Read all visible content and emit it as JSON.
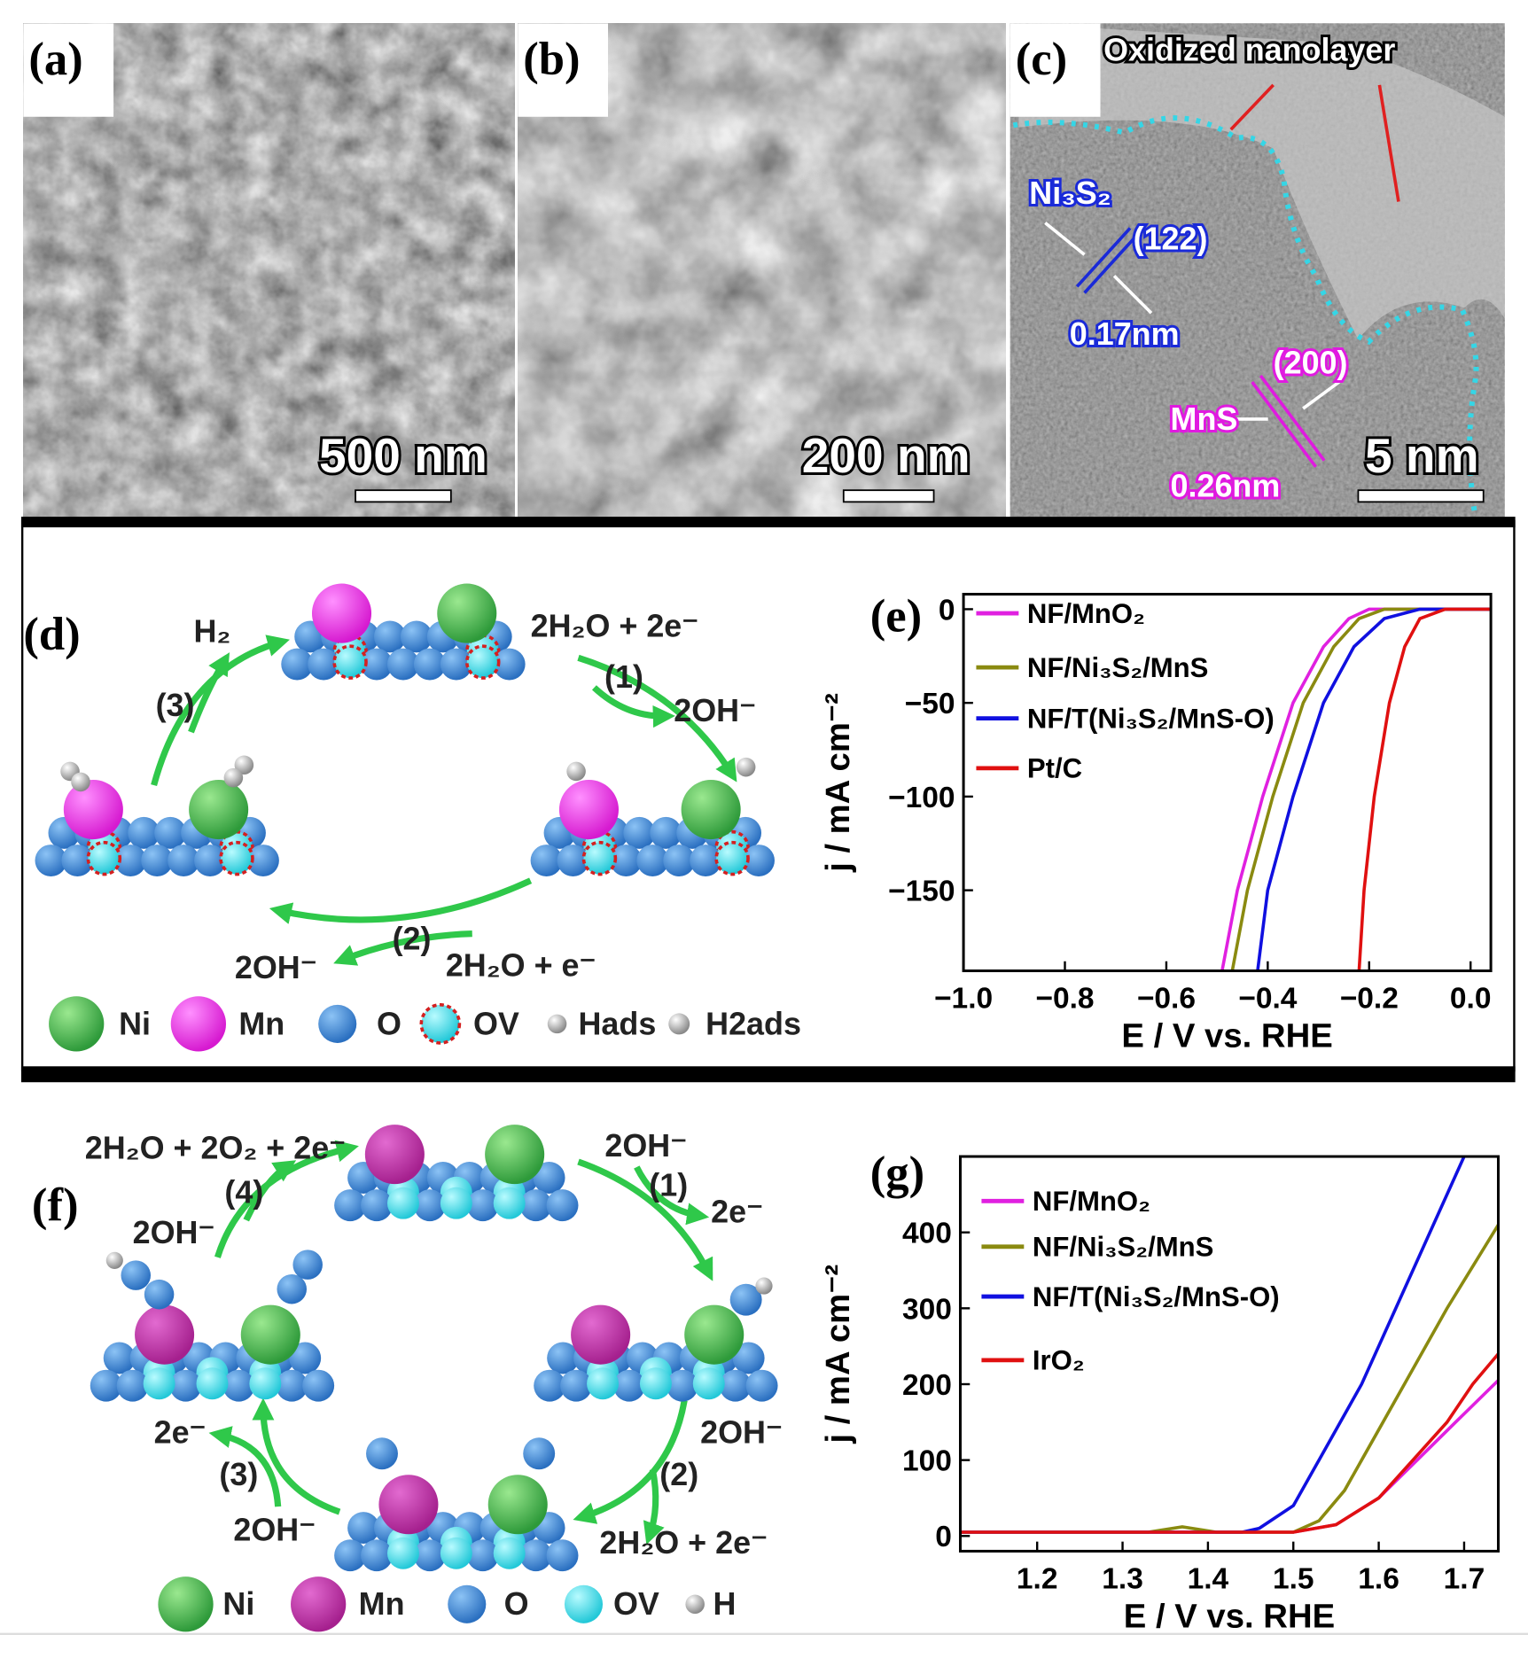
{
  "panel_a": {
    "label": "(a)",
    "scale_bar": "500 nm"
  },
  "panel_b": {
    "label": "(b)",
    "scale_bar": "200 nm"
  },
  "panel_c": {
    "label": "(c)",
    "scale_bar": "5 nm",
    "annotations": [
      "Oxidized nanolayer",
      "Ni₃S₂",
      "(122)",
      "0.17nm",
      "MnS",
      "(200)",
      "0.26nm"
    ]
  },
  "panel_d": {
    "label": "(d)",
    "labels": [
      "H₂",
      "2H₂O + 2e⁻",
      "(1)",
      "2OH⁻",
      "(3)",
      "(2)",
      "2OH⁻",
      "2H₂O + e⁻"
    ],
    "legend": [
      "Ni",
      "Mn",
      "O",
      "OV",
      "Hads",
      "H2ads"
    ]
  },
  "panel_f": {
    "label": "(f)",
    "labels": [
      "2H₂O + 2O₂ + 2e⁻",
      "(4)",
      "2OH⁻",
      "2OH⁻",
      "(1)",
      "2e⁻",
      "2OH⁻",
      "(2)",
      "2H₂O + 2e⁻",
      "2e⁻",
      "(3)",
      "2OH⁻"
    ],
    "legend": [
      "Ni",
      "Mn",
      "O",
      "OV",
      "H"
    ]
  },
  "chart_data": [
    {
      "type": "line",
      "label": "(e)",
      "x_label": "E / V vs. RHE",
      "y_label": "j / mA cm⁻²",
      "legend": "top-left",
      "xlim": [
        -1.0,
        0.04
      ],
      "ylim": [
        -193,
        8
      ],
      "xticks": [
        {
          "value": -1.0,
          "label": "−1.0"
        },
        {
          "value": -0.8,
          "label": "−0.8"
        },
        {
          "value": -0.6,
          "label": "−0.6"
        },
        {
          "value": -0.4,
          "label": "−0.4"
        },
        {
          "value": -0.2,
          "label": "−0.2"
        },
        {
          "value": 0,
          "label": "0.0"
        }
      ],
      "yticks": [
        0,
        {
          "value": -50,
          "label": "−50"
        },
        {
          "value": -100,
          "label": "−100"
        },
        {
          "value": -150,
          "label": "−150"
        }
      ],
      "series": [
        {
          "name": "NF/MnO₂",
          "color": "#e020e0",
          "x": [
            -0.49,
            -0.46,
            -0.41,
            -0.35,
            -0.29,
            -0.24,
            -0.2,
            0.04
          ],
          "values": [
            -193,
            -150,
            -100,
            -50,
            -20,
            -5,
            0,
            0
          ]
        },
        {
          "name": "NF/Ni₃S₂/MnS",
          "color": "#8a8a10",
          "x": [
            -0.47,
            -0.44,
            -0.39,
            -0.33,
            -0.27,
            -0.22,
            -0.17,
            0.04
          ],
          "values": [
            -193,
            -150,
            -100,
            -50,
            -20,
            -5,
            0,
            0
          ]
        },
        {
          "name": "NF/T(Ni₃S₂/MnS-O)",
          "color": "#1010e0",
          "x": [
            -0.42,
            -0.4,
            -0.35,
            -0.29,
            -0.23,
            -0.17,
            -0.1,
            0.04
          ],
          "values": [
            -193,
            -150,
            -100,
            -50,
            -20,
            -5,
            0,
            0
          ]
        },
        {
          "name": "Pt/C",
          "color": "#e01010",
          "x": [
            -0.22,
            -0.21,
            -0.19,
            -0.16,
            -0.13,
            -0.1,
            -0.05,
            0.04
          ],
          "values": [
            -193,
            -150,
            -100,
            -50,
            -20,
            -5,
            0,
            0
          ]
        }
      ]
    },
    {
      "type": "line",
      "label": "(g)",
      "x_label": "E / V vs. RHE",
      "y_label": "j / mA cm⁻²",
      "legend": "top-left",
      "xlim": [
        1.11,
        1.74
      ],
      "ylim": [
        -20,
        500
      ],
      "xticks": [
        1.2,
        1.3,
        1.4,
        1.5,
        1.6,
        1.7
      ],
      "yticks": [
        0,
        100,
        200,
        300,
        400
      ],
      "series": [
        {
          "name": "NF/MnO₂",
          "color": "#e020e0",
          "x": [
            1.11,
            1.3,
            1.5,
            1.55,
            1.6,
            1.645,
            1.69,
            1.74
          ],
          "values": [
            5,
            5,
            5,
            15,
            50,
            100,
            150,
            205
          ]
        },
        {
          "name": "NF/Ni₃S₂/MnS",
          "color": "#8a8a10",
          "x": [
            1.11,
            1.33,
            1.37,
            1.41,
            1.5,
            1.53,
            1.56,
            1.58,
            1.63,
            1.68,
            1.74
          ],
          "values": [
            5,
            5,
            12,
            5,
            5,
            20,
            60,
            100,
            200,
            300,
            410
          ]
        },
        {
          "name": "NF/T(Ni₃S₂/MnS-O)",
          "color": "#1010e0",
          "x": [
            1.11,
            1.44,
            1.46,
            1.5,
            1.53,
            1.58,
            1.62,
            1.66,
            1.7
          ],
          "values": [
            5,
            5,
            10,
            40,
            100,
            200,
            300,
            400,
            500
          ]
        },
        {
          "name": "IrO₂",
          "color": "#e01010",
          "x": [
            1.11,
            1.3,
            1.5,
            1.55,
            1.6,
            1.64,
            1.68,
            1.71,
            1.74
          ],
          "values": [
            5,
            5,
            5,
            15,
            50,
            100,
            150,
            200,
            240
          ]
        }
      ]
    }
  ]
}
